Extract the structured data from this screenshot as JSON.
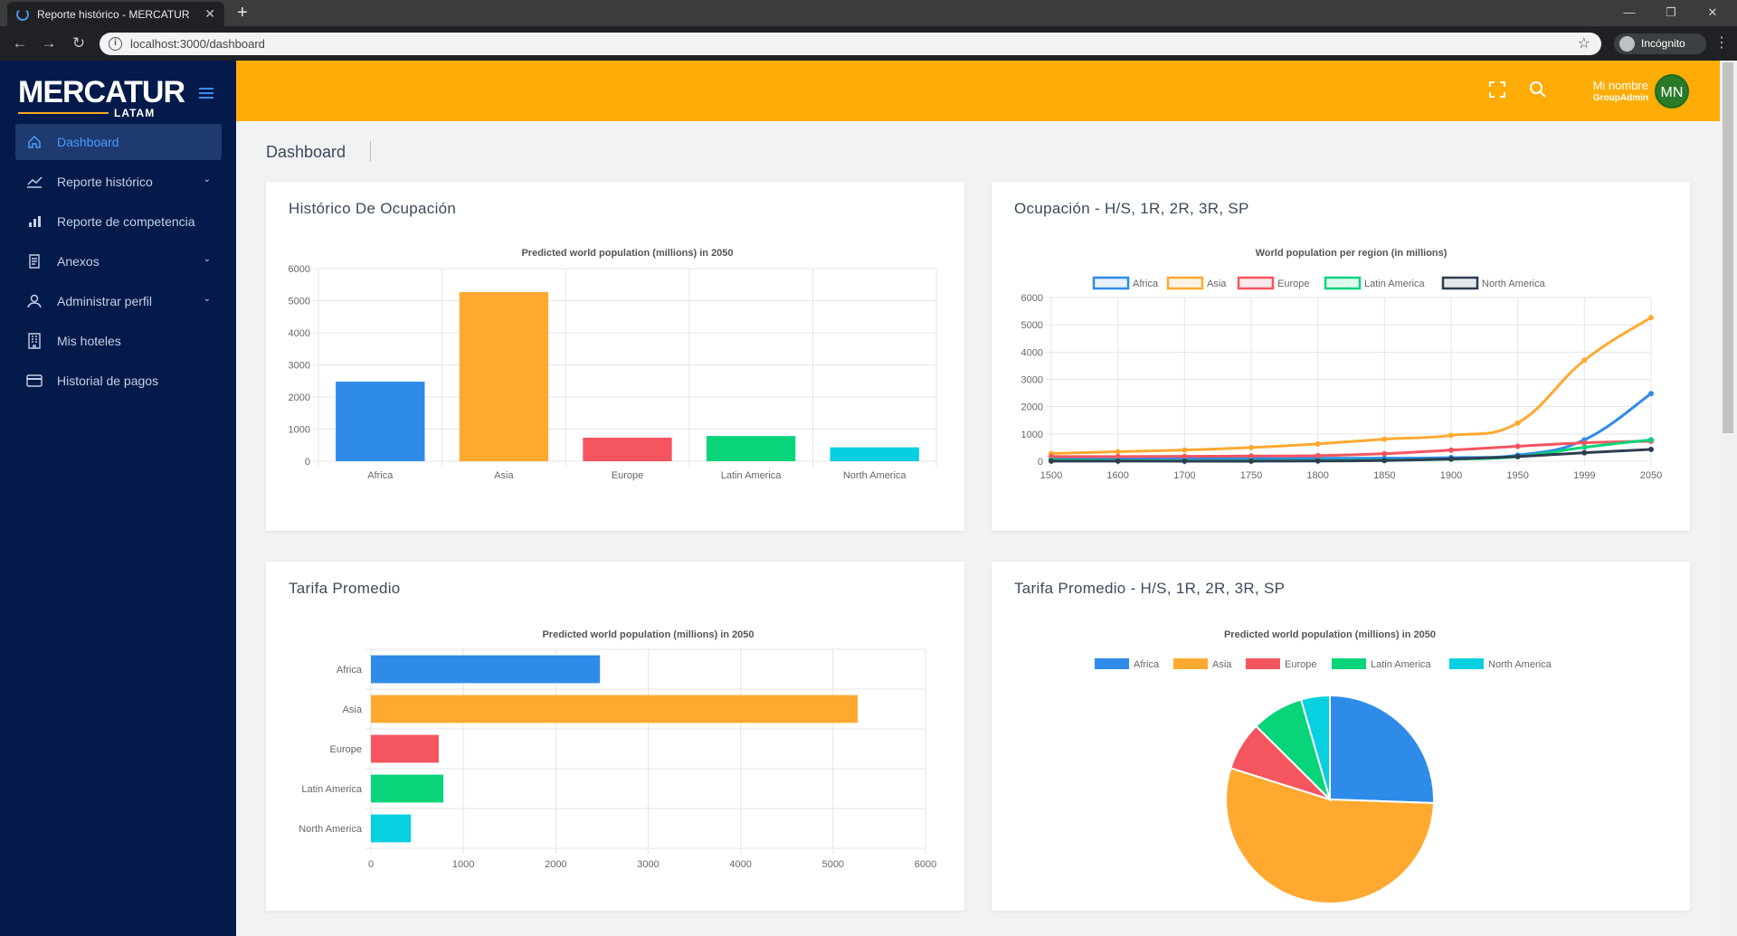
{
  "browser": {
    "tab_title": "Reporte histórico - MERCATUR",
    "url": "localhost:3000/dashboard",
    "incognito_label": "Incógnito"
  },
  "sidebar": {
    "logo_text": "MERCATUR",
    "logo_sub": "LATAM",
    "items": [
      {
        "label": "Dashboard",
        "icon": "home-icon",
        "active": true,
        "chevron": false
      },
      {
        "label": "Reporte histórico",
        "icon": "chart-line-icon",
        "active": false,
        "chevron": true
      },
      {
        "label": "Reporte de competencia",
        "icon": "bar-chart-icon",
        "active": false,
        "chevron": false
      },
      {
        "label": "Anexos",
        "icon": "document-icon",
        "active": false,
        "chevron": true
      },
      {
        "label": "Administrar perfil",
        "icon": "user-icon",
        "active": false,
        "chevron": true
      },
      {
        "label": "Mis hoteles",
        "icon": "building-icon",
        "active": false,
        "chevron": false
      },
      {
        "label": "Historial de pagos",
        "icon": "credit-card-icon",
        "active": false,
        "chevron": false
      }
    ]
  },
  "header": {
    "user_name": "Mi nombre",
    "user_role": "GroupAdmin",
    "avatar_initials": "MN"
  },
  "page": {
    "breadcrumb": "Dashboard"
  },
  "colors": {
    "accent": "#ffad06",
    "sidebar_bg": "#041a4a",
    "Africa": "#2f8be8",
    "Asia": "#ffa931",
    "Europe": "#f4555f",
    "Latin America": "#08d47a",
    "North America": "#07d0e0",
    "NA_line": "#2d3e50"
  },
  "cards": [
    {
      "title": "Histórico De Ocupación"
    },
    {
      "title": "Ocupación - H/S, 1R, 2R, 3R, SP"
    },
    {
      "title": "Tarifa Promedio"
    },
    {
      "title": "Tarifa Promedio - H/S, 1R, 2R, 3R, SP"
    }
  ],
  "chart_data": [
    {
      "type": "bar",
      "title": "Predicted world population (millions) in 2050",
      "categories": [
        "Africa",
        "Asia",
        "Europe",
        "Latin America",
        "North America"
      ],
      "values": [
        2478,
        5267,
        734,
        784,
        433
      ],
      "ylim": [
        0,
        6000
      ],
      "yticks": [
        0,
        1000,
        2000,
        3000,
        4000,
        5000,
        6000
      ],
      "grid": true
    },
    {
      "type": "line",
      "title": "World population per region (in millions)",
      "x": [
        "1500",
        "1600",
        "1700",
        "1750",
        "1800",
        "1850",
        "1900",
        "1950",
        "1999",
        "2050"
      ],
      "series": [
        {
          "name": "Africa",
          "values": [
            86,
            114,
            106,
            106,
            107,
            111,
            133,
            221,
            783,
            2478
          ]
        },
        {
          "name": "Asia",
          "values": [
            282,
            350,
            411,
            502,
            635,
            809,
            947,
            1402,
            3700,
            5267
          ]
        },
        {
          "name": "Europe",
          "values": [
            168,
            170,
            178,
            190,
            203,
            276,
            408,
            547,
            675,
            734
          ]
        },
        {
          "name": "Latin America",
          "values": [
            40,
            20,
            10,
            16,
            24,
            38,
            74,
            167,
            508,
            784
          ]
        },
        {
          "name": "North America",
          "values": [
            6,
            3,
            2,
            2,
            7,
            26,
            82,
            172,
            312,
            433
          ]
        }
      ],
      "ylim": [
        0,
        6000
      ],
      "yticks": [
        0,
        1000,
        2000,
        3000,
        4000,
        5000,
        6000
      ],
      "legend": "top",
      "grid": true
    },
    {
      "type": "bar",
      "orientation": "horizontal",
      "title": "Predicted world population (millions) in 2050",
      "categories": [
        "Africa",
        "Asia",
        "Europe",
        "Latin America",
        "North America"
      ],
      "values": [
        2478,
        5267,
        734,
        784,
        433
      ],
      "xlim": [
        0,
        6000
      ],
      "xticks": [
        0,
        1000,
        2000,
        3000,
        4000,
        5000,
        6000
      ],
      "grid": true
    },
    {
      "type": "pie",
      "title": "Predicted world population (millions) in 2050",
      "categories": [
        "Africa",
        "Asia",
        "Europe",
        "Latin America",
        "North America"
      ],
      "values": [
        2478,
        5267,
        734,
        784,
        433
      ],
      "legend": "top"
    }
  ]
}
